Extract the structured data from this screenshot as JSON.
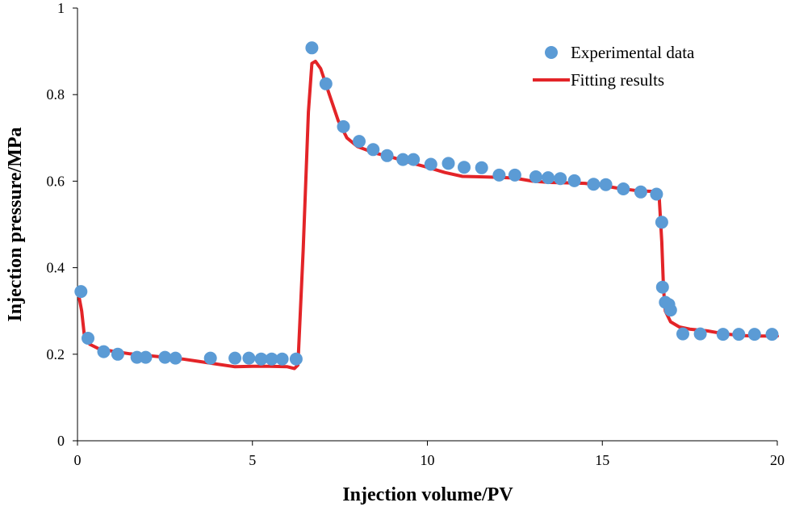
{
  "chart_data": {
    "type": "scatter",
    "title": "",
    "xlabel": "Injection volume/PV",
    "ylabel": "Injection pressure/MPa",
    "xlim": [
      0,
      20
    ],
    "ylim": [
      0,
      1
    ],
    "x_ticks": [
      0,
      5,
      10,
      15,
      20
    ],
    "y_ticks": [
      0,
      0.2,
      0.4,
      0.6,
      0.8,
      1
    ],
    "x_tick_labels": [
      "0",
      "5",
      "10",
      "15",
      "20"
    ],
    "y_tick_labels": [
      "0",
      "0.2",
      "0.4",
      "0.6",
      "0.8",
      "1"
    ],
    "grid": false,
    "legend_position": "top-right",
    "series": [
      {
        "name": "Experimental data",
        "kind": "markers",
        "color": "#5b9bd5",
        "points": [
          [
            0.1,
            0.345
          ],
          [
            0.3,
            0.237
          ],
          [
            0.75,
            0.206
          ],
          [
            1.15,
            0.2
          ],
          [
            1.7,
            0.193
          ],
          [
            1.95,
            0.193
          ],
          [
            2.5,
            0.193
          ],
          [
            2.8,
            0.191
          ],
          [
            3.8,
            0.191
          ],
          [
            4.5,
            0.191
          ],
          [
            4.9,
            0.191
          ],
          [
            5.25,
            0.189
          ],
          [
            5.55,
            0.189
          ],
          [
            5.85,
            0.189
          ],
          [
            6.25,
            0.189
          ],
          [
            6.7,
            0.908
          ],
          [
            7.1,
            0.825
          ],
          [
            7.6,
            0.726
          ],
          [
            8.05,
            0.692
          ],
          [
            8.45,
            0.673
          ],
          [
            8.85,
            0.659
          ],
          [
            9.3,
            0.65
          ],
          [
            9.6,
            0.65
          ],
          [
            10.1,
            0.639
          ],
          [
            10.6,
            0.641
          ],
          [
            11.05,
            0.632
          ],
          [
            11.55,
            0.631
          ],
          [
            12.05,
            0.614
          ],
          [
            12.5,
            0.614
          ],
          [
            13.1,
            0.61
          ],
          [
            13.45,
            0.608
          ],
          [
            13.8,
            0.606
          ],
          [
            14.2,
            0.601
          ],
          [
            14.75,
            0.593
          ],
          [
            15.1,
            0.592
          ],
          [
            15.6,
            0.582
          ],
          [
            16.1,
            0.575
          ],
          [
            16.55,
            0.57
          ],
          [
            16.7,
            0.505
          ],
          [
            16.72,
            0.355
          ],
          [
            16.8,
            0.32
          ],
          [
            16.9,
            0.315
          ],
          [
            16.95,
            0.302
          ],
          [
            17.3,
            0.247
          ],
          [
            17.8,
            0.247
          ],
          [
            18.45,
            0.246
          ],
          [
            18.9,
            0.246
          ],
          [
            19.35,
            0.246
          ],
          [
            19.85,
            0.246
          ]
        ]
      },
      {
        "name": "Fitting results",
        "kind": "line",
        "color": "#e32428",
        "points": [
          [
            0.05,
            0.33
          ],
          [
            0.12,
            0.3
          ],
          [
            0.2,
            0.24
          ],
          [
            0.35,
            0.223
          ],
          [
            0.6,
            0.213
          ],
          [
            1.0,
            0.207
          ],
          [
            1.5,
            0.201
          ],
          [
            2.0,
            0.197
          ],
          [
            2.5,
            0.193
          ],
          [
            3.0,
            0.189
          ],
          [
            3.5,
            0.183
          ],
          [
            4.0,
            0.177
          ],
          [
            4.5,
            0.171
          ],
          [
            5.0,
            0.172
          ],
          [
            5.5,
            0.172
          ],
          [
            6.0,
            0.171
          ],
          [
            6.2,
            0.167
          ],
          [
            6.3,
            0.175
          ],
          [
            6.45,
            0.44
          ],
          [
            6.6,
            0.76
          ],
          [
            6.7,
            0.872
          ],
          [
            6.8,
            0.877
          ],
          [
            6.95,
            0.86
          ],
          [
            7.2,
            0.8
          ],
          [
            7.45,
            0.74
          ],
          [
            7.7,
            0.7
          ],
          [
            8.0,
            0.68
          ],
          [
            8.5,
            0.665
          ],
          [
            9.0,
            0.655
          ],
          [
            9.5,
            0.643
          ],
          [
            10.0,
            0.632
          ],
          [
            10.5,
            0.62
          ],
          [
            11.0,
            0.611
          ],
          [
            11.5,
            0.61
          ],
          [
            12.0,
            0.609
          ],
          [
            12.5,
            0.607
          ],
          [
            13.0,
            0.6
          ],
          [
            13.5,
            0.597
          ],
          [
            14.0,
            0.596
          ],
          [
            14.5,
            0.595
          ],
          [
            15.0,
            0.59
          ],
          [
            15.5,
            0.583
          ],
          [
            16.0,
            0.578
          ],
          [
            16.5,
            0.576
          ],
          [
            16.62,
            0.57
          ],
          [
            16.7,
            0.46
          ],
          [
            16.75,
            0.35
          ],
          [
            16.8,
            0.3
          ],
          [
            16.95,
            0.275
          ],
          [
            17.2,
            0.263
          ],
          [
            17.5,
            0.258
          ],
          [
            18.0,
            0.254
          ],
          [
            18.5,
            0.247
          ],
          [
            19.0,
            0.243
          ],
          [
            19.5,
            0.242
          ],
          [
            20.0,
            0.242
          ]
        ]
      }
    ]
  }
}
